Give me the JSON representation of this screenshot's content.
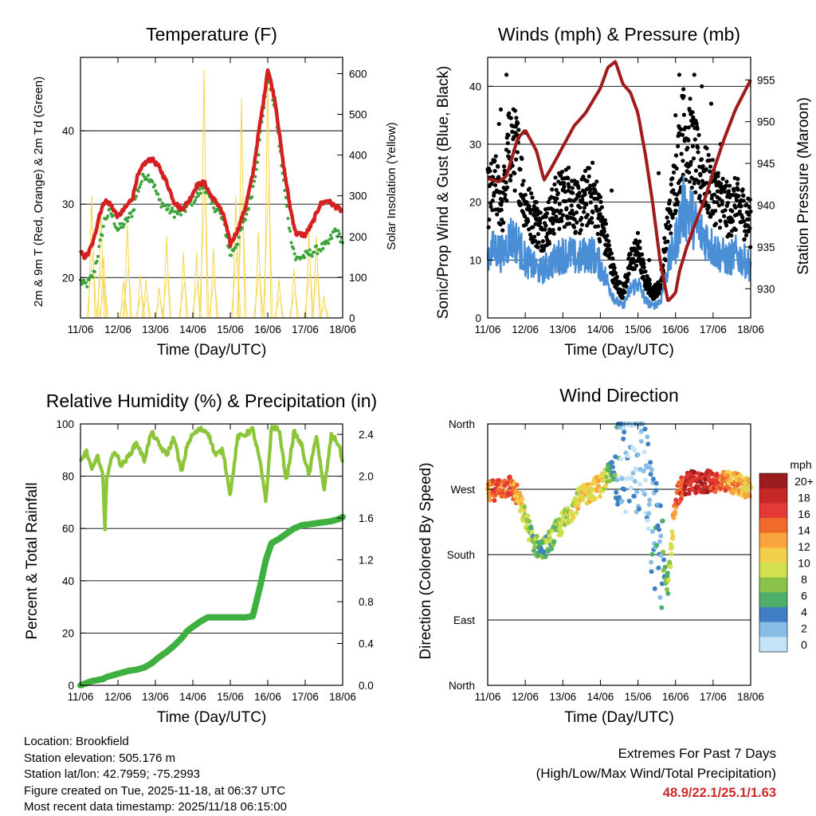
{
  "time_axis": {
    "xlabel": "Time (Day/UTC)",
    "ticks": [
      "11/06",
      "12/06",
      "13/06",
      "14/06",
      "15/06",
      "16/06",
      "17/06",
      "18/06"
    ]
  },
  "chart_data": [
    {
      "id": "temperature",
      "type": "line",
      "title": "Temperature (F)",
      "ylabel": "2m & 9m T (Red, Orange) & 2m Td (Green)",
      "y2label": "Solar Insolation (Yellow)",
      "ylim": [
        14.5,
        50
      ],
      "y2lim": [
        0,
        640
      ],
      "yticks": [
        20,
        30,
        40
      ],
      "y2ticks": [
        0,
        100,
        200,
        300,
        400,
        500,
        600
      ],
      "gridlines": [
        20,
        30,
        40
      ],
      "x_days": [
        0,
        0.1,
        0.2,
        0.35,
        0.5,
        0.65,
        0.8,
        1.0,
        1.2,
        1.4,
        1.5,
        1.7,
        1.9,
        2.1,
        2.3,
        2.5,
        2.7,
        2.9,
        3.1,
        3.3,
        3.5,
        3.7,
        3.85,
        4.0,
        4.2,
        4.4,
        4.6,
        4.75,
        4.9,
        5.0,
        5.2,
        5.4,
        5.6,
        5.75,
        6.0,
        6.2,
        6.4,
        6.6,
        6.8,
        7.0
      ],
      "series": [
        {
          "name": "2m T",
          "color": "#d42020",
          "values": [
            23.5,
            22.8,
            23.2,
            25.0,
            28.5,
            30.5,
            30.0,
            28.3,
            29.5,
            31.0,
            33.5,
            35.5,
            36.2,
            35.0,
            33.0,
            30.3,
            29.3,
            30.5,
            32.5,
            33.0,
            31.0,
            29.8,
            28.0,
            24.5,
            26.5,
            29.5,
            34.0,
            39.5,
            44.5,
            48.5,
            44.0,
            36.0,
            29.5,
            26.0,
            25.8,
            27.5,
            30.0,
            30.5,
            29.7,
            29.0
          ]
        },
        {
          "name": "2m Td",
          "color": "#3aa33a",
          "values": [
            19.5,
            19.0,
            19.2,
            20.5,
            24.0,
            28.0,
            29.0,
            26.5,
            27.5,
            29.0,
            31.5,
            34.0,
            33.5,
            30.5,
            29.5,
            28.8,
            28.8,
            30.0,
            31.0,
            32.5,
            30.0,
            29.0,
            27.0,
            23.0,
            25.0,
            28.0,
            32.0,
            37.0,
            43.5,
            47.5,
            43.0,
            34.0,
            26.0,
            22.5,
            23.0,
            23.5,
            24.0,
            24.5,
            26.5,
            25.0
          ]
        }
      ],
      "solar": {
        "name": "Solar Insolation",
        "color": "#f5d54a",
        "peaks": [
          [
            0.3,
            300
          ],
          [
            0.55,
            260
          ],
          [
            0.62,
            150
          ],
          [
            1.15,
            90
          ],
          [
            1.25,
            230
          ],
          [
            1.6,
            105
          ],
          [
            1.75,
            95
          ],
          [
            2.1,
            75
          ],
          [
            2.3,
            200
          ],
          [
            2.75,
            160
          ],
          [
            3.1,
            160
          ],
          [
            3.3,
            610
          ],
          [
            3.55,
            170
          ],
          [
            4.15,
            300
          ],
          [
            4.3,
            540
          ],
          [
            4.75,
            210
          ],
          [
            5.0,
            600
          ],
          [
            5.3,
            95
          ],
          [
            5.7,
            120
          ],
          [
            6.1,
            210
          ],
          [
            6.3,
            200
          ],
          [
            6.5,
            55
          ]
        ]
      }
    },
    {
      "id": "winds",
      "type": "scatter",
      "title": "Winds (mph) & Pressure (mb)",
      "ylabel": "Sonic/Prop Wind & Gust (Blue, Black)",
      "y2label": "Station Pressure (Maroon)",
      "ylim": [
        0,
        45
      ],
      "y2lim": [
        926.5,
        957.7
      ],
      "yticks": [
        0,
        10,
        20,
        30,
        40
      ],
      "y2ticks": [
        930,
        935,
        940,
        945,
        950,
        955
      ],
      "gridlines": [
        10,
        20,
        30,
        40
      ],
      "wind_x": [
        0,
        0.2,
        0.4,
        0.6,
        0.8,
        1.0,
        1.2,
        1.4,
        1.6,
        1.8,
        2.0,
        2.2,
        2.4,
        2.6,
        2.8,
        3.0,
        3.2,
        3.4,
        3.6,
        3.8,
        4.0,
        4.2,
        4.4,
        4.6,
        4.8,
        5.0,
        5.2,
        5.4,
        5.6,
        5.8,
        6.0,
        6.2,
        6.4,
        6.6,
        6.8,
        7.0
      ],
      "wind_speed": [
        11,
        12,
        11,
        14,
        13,
        10,
        9,
        8,
        9,
        10,
        11,
        11,
        10,
        11,
        11,
        9,
        6,
        3,
        2,
        5,
        6,
        3,
        2,
        3,
        9,
        13,
        19,
        18,
        15,
        14,
        12,
        11,
        10,
        11,
        10,
        9
      ],
      "wind_gust": [
        19,
        21,
        18,
        28,
        26,
        18,
        16,
        14,
        15,
        18,
        19,
        20,
        17,
        19,
        20,
        16,
        11,
        6,
        4,
        9,
        11,
        6,
        4,
        5,
        15,
        22,
        30,
        28,
        24,
        22,
        20,
        19,
        17,
        18,
        17,
        15
      ],
      "pressure_x": [
        0,
        0.3,
        0.5,
        0.8,
        1.0,
        1.3,
        1.5,
        1.7,
        2.0,
        2.3,
        2.6,
        3.0,
        3.2,
        3.4,
        3.6,
        3.8,
        4.0,
        4.2,
        4.4,
        4.6,
        4.8,
        5.0,
        5.1,
        5.3,
        5.5,
        5.8,
        6.0,
        6.3,
        6.6,
        7.0
      ],
      "pressure": [
        943.2,
        942.8,
        943.5,
        948.0,
        949.0,
        946.5,
        943.0,
        944.5,
        947.0,
        949.5,
        951.0,
        954.0,
        956.5,
        957.2,
        954.5,
        953.5,
        951.0,
        946.0,
        940.0,
        933.0,
        928.5,
        929.5,
        932.0,
        935.0,
        937.5,
        941.0,
        944.0,
        948.0,
        951.5,
        955.0
      ],
      "gust_peaks": [
        [
          0.3,
          33.5
        ],
        [
          0.35,
          36
        ],
        [
          0.5,
          42
        ],
        [
          0.55,
          35
        ],
        [
          1.0,
          32
        ],
        [
          1.3,
          20
        ],
        [
          1.9,
          25
        ],
        [
          2.15,
          22
        ],
        [
          3.3,
          22
        ],
        [
          4.3,
          10
        ],
        [
          4.55,
          25
        ],
        [
          5.0,
          35
        ],
        [
          5.1,
          42
        ],
        [
          5.2,
          38
        ],
        [
          5.5,
          42
        ],
        [
          5.7,
          40
        ],
        [
          5.95,
          37
        ],
        [
          6.2,
          30
        ]
      ],
      "colors": {
        "wind": "#4a8fd6",
        "gust": "#000000",
        "pressure": "#a01c1c"
      }
    },
    {
      "id": "humidity",
      "type": "line",
      "title": "Relative Humidity (%) & Precipitation (in)",
      "ylabel": "Percent & Total Rainfall",
      "ylim": [
        0,
        100
      ],
      "y2lim": [
        0,
        2.5
      ],
      "yticks": [
        0,
        20,
        40,
        60,
        80,
        100
      ],
      "y2ticks": [
        "0.0",
        "0.4",
        "0.8",
        "1.2",
        "1.6",
        "2.0",
        "2.4"
      ],
      "gridlines": [
        20,
        40,
        60,
        80
      ],
      "x_days": [
        0,
        0.15,
        0.3,
        0.45,
        0.6,
        0.65,
        0.7,
        0.9,
        1.1,
        1.3,
        1.5,
        1.7,
        1.9,
        2.1,
        2.3,
        2.5,
        2.7,
        2.85,
        3.0,
        3.2,
        3.4,
        3.6,
        3.8,
        4.0,
        4.2,
        4.4,
        4.6,
        4.8,
        4.95,
        5.1,
        5.3,
        5.5,
        5.7,
        5.9,
        6.1,
        6.3,
        6.5,
        6.7,
        6.9,
        7.0
      ],
      "rh": [
        85,
        90,
        82,
        88,
        80,
        57,
        80,
        90,
        84,
        88,
        93,
        86,
        97,
        92,
        88,
        95,
        81,
        92,
        96,
        98,
        97,
        88,
        90,
        73,
        95,
        96,
        98,
        85,
        70,
        99,
        98,
        78,
        97,
        92,
        80,
        96,
        74,
        96,
        92,
        85
      ],
      "precip": [
        0.0,
        0.02,
        0.04,
        0.05,
        0.06,
        0.07,
        0.08,
        0.1,
        0.12,
        0.14,
        0.15,
        0.17,
        0.21,
        0.27,
        0.32,
        0.38,
        0.45,
        0.52,
        0.56,
        0.61,
        0.65,
        0.65,
        0.65,
        0.65,
        0.65,
        0.65,
        0.66,
        0.95,
        1.2,
        1.36,
        1.4,
        1.45,
        1.5,
        1.53,
        1.54,
        1.55,
        1.56,
        1.57,
        1.59,
        1.61
      ],
      "colors": {
        "rh": "#8cc43a",
        "precip": "#3fb040"
      }
    },
    {
      "id": "direction",
      "type": "scatter",
      "title": "Wind Direction",
      "ylabel": "Direction (Colored By Speed)",
      "yticks": [
        "North",
        "East",
        "South",
        "West",
        "North"
      ],
      "ylim_deg": [
        0,
        360
      ],
      "gridlines": [
        90,
        180,
        270
      ],
      "dir_x": [
        0,
        0.2,
        0.4,
        0.6,
        0.8,
        1.0,
        1.2,
        1.4,
        1.6,
        1.8,
        2.0,
        2.2,
        2.4,
        2.6,
        2.8,
        3.0,
        3.2,
        3.4,
        3.6,
        3.8,
        4.0,
        4.2,
        4.4,
        4.6,
        4.8,
        5.0,
        5.2,
        5.4,
        5.6,
        5.8,
        6.0,
        6.2,
        6.4,
        6.6,
        6.8,
        7.0
      ],
      "dir_deg": [
        265,
        270,
        272,
        275,
        260,
        230,
        200,
        185,
        195,
        210,
        225,
        240,
        255,
        262,
        270,
        275,
        290,
        300,
        315,
        310,
        320,
        300,
        215,
        180,
        140,
        255,
        275,
        280,
        278,
        280,
        282,
        278,
        280,
        278,
        275,
        272
      ],
      "dir_speed": [
        14,
        16,
        15,
        17,
        13,
        10,
        7,
        6,
        7,
        8,
        9,
        10,
        11,
        12,
        11,
        13,
        9,
        5,
        2,
        2,
        3,
        1,
        4,
        3,
        8,
        15,
        18,
        20,
        19,
        20,
        18,
        17,
        14,
        15,
        13,
        12
      ],
      "legend": {
        "unit": "mph",
        "labels": [
          "20+",
          "18",
          "16",
          "14",
          "12",
          "10",
          "8",
          "6",
          "4",
          "2",
          "0"
        ],
        "colors": [
          "#9b1c1c",
          "#c62828",
          "#e53935",
          "#f06a2c",
          "#f9a43c",
          "#f1cf4a",
          "#d2e04e",
          "#8bc34a",
          "#4caf6a",
          "#3f7fc5",
          "#88bde6",
          "#c3e3f7"
        ]
      }
    }
  ],
  "info": {
    "location": "Location: Brookfield",
    "elevation": "Station elevation: 505.176 m",
    "latlon": "Station lat/lon: 42.7959; -75.2993",
    "created": "Figure created on Tue, 2025-11-18, at 06:37 UTC",
    "recent": "Most recent data timestamp: 2025/11/18 06:15:00"
  },
  "extremes": {
    "title": "Extremes For Past 7 Days",
    "subtitle": "(High/Low/Max Wind/Total Precipitation)",
    "values": "48.9/22.1/25.1/1.63"
  }
}
